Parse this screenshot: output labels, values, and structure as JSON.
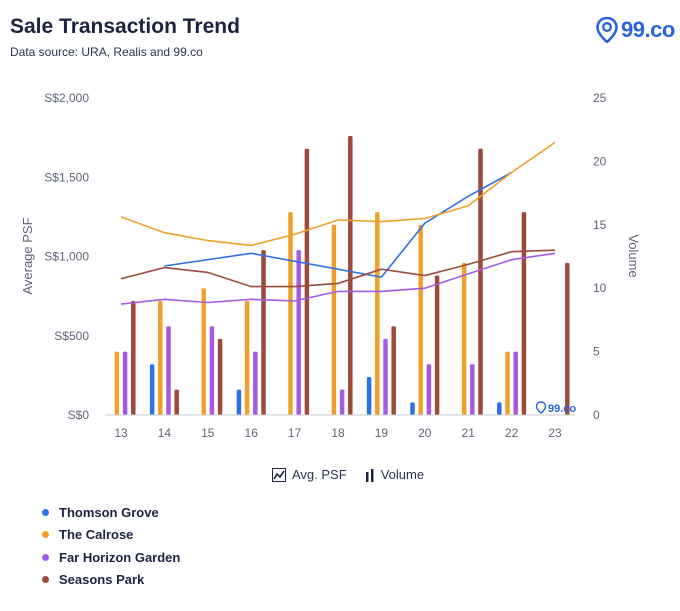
{
  "header": {
    "title": "Sale Transaction Trend",
    "subtitle": "Data source: URA, Realis and 99.co",
    "logo_text": "99.co"
  },
  "watermark_text": "99.co",
  "legend": {
    "avg_psf_label": "Avg. PSF",
    "volume_label": "Volume"
  },
  "chart_data": {
    "type": "bar",
    "title": "Sale Transaction Trend",
    "x": [
      "13",
      "14",
      "15",
      "16",
      "17",
      "18",
      "19",
      "20",
      "21",
      "22",
      "23"
    ],
    "y_left": {
      "label": "Average PSF",
      "min": 0,
      "max": 2000,
      "ticks": [
        "S$0",
        "S$500",
        "S$1,000",
        "S$1,500",
        "S$2,000"
      ],
      "tick_values": [
        0,
        500,
        1000,
        1500,
        2000
      ]
    },
    "y_right": {
      "label": "Volume",
      "min": 0,
      "max": 25,
      "ticks": [
        "0",
        "5",
        "10",
        "15",
        "20",
        "25"
      ],
      "tick_values": [
        0,
        5,
        10,
        15,
        20,
        25
      ]
    },
    "series": [
      {
        "name": "Thomson Grove",
        "color": "#2f6fe4",
        "volume": [
          0,
          4,
          0,
          2,
          0,
          0,
          3,
          1,
          0,
          1,
          0
        ],
        "avg_psf": [
          null,
          940,
          null,
          1020,
          null,
          null,
          870,
          1210,
          1380,
          1530,
          null
        ]
      },
      {
        "name": "The Calrose",
        "color": "#f0a02a",
        "volume": [
          5,
          9,
          10,
          9,
          16,
          15,
          16,
          15,
          12,
          5,
          0
        ],
        "avg_psf": [
          1250,
          1150,
          1100,
          1070,
          1140,
          1230,
          1220,
          1240,
          1320,
          1530,
          1720
        ]
      },
      {
        "name": "Far Horizon Garden",
        "color": "#a35be6",
        "volume": [
          5,
          7,
          7,
          5,
          13,
          2,
          6,
          4,
          4,
          5,
          0
        ],
        "avg_psf": [
          700,
          730,
          710,
          730,
          720,
          780,
          780,
          800,
          890,
          980,
          1020
        ]
      },
      {
        "name": "Seasons Park",
        "color": "#9c4a3c",
        "volume": [
          9,
          2,
          6,
          13,
          21,
          22,
          7,
          11,
          21,
          16,
          12
        ],
        "avg_psf": [
          860,
          930,
          900,
          810,
          810,
          830,
          920,
          880,
          950,
          1030,
          1040
        ]
      }
    ],
    "grid": false,
    "legend_position": "bottom-left"
  }
}
